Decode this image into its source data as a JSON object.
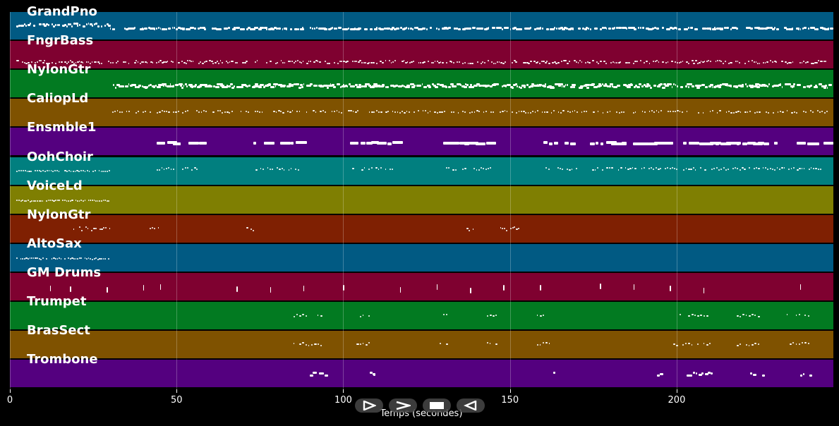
{
  "tracks": [
    {
      "name": "GrandPno",
      "color": "#015a83",
      "pattern": "dense"
    },
    {
      "name": "FngrBass",
      "color": "#7f0130",
      "pattern": "dense_thin"
    },
    {
      "name": "NylonGtr",
      "color": "#027a21",
      "pattern": "late_dense"
    },
    {
      "name": "CaliopLd",
      "color": "#7f5200",
      "pattern": "late_medium"
    },
    {
      "name": "Ensmble1",
      "color": "#54007f",
      "pattern": "blocks"
    },
    {
      "name": "OohChoir",
      "color": "#017f7f",
      "pattern": "choir"
    },
    {
      "name": "VoiceLd",
      "color": "#7f7f02",
      "pattern": "intro"
    },
    {
      "name": "NylonGtr",
      "color": "#7f2002",
      "pattern": "sparse"
    },
    {
      "name": "AltoSax",
      "color": "#015a83",
      "pattern": "intro"
    },
    {
      "name": "GM Drums",
      "color": "#7f0130",
      "pattern": "drums"
    },
    {
      "name": "Trumpet",
      "color": "#027a21",
      "pattern": "brass"
    },
    {
      "name": "BrasSect",
      "color": "#7f5200",
      "pattern": "brass"
    },
    {
      "name": "Trombone",
      "color": "#54007f",
      "pattern": "trombone"
    }
  ],
  "xaxis": {
    "label": "Temps (secondes)",
    "range": [
      0,
      247
    ],
    "ticks": [
      {
        "value": 0,
        "label": "0"
      },
      {
        "value": 50,
        "label": "50"
      },
      {
        "value": 100,
        "label": "100"
      },
      {
        "value": 150,
        "label": "150"
      },
      {
        "value": 200,
        "label": "200"
      }
    ]
  },
  "controls": [
    {
      "name": "play-icon",
      "label": "play"
    },
    {
      "name": "fast-forward-icon",
      "label": "forward"
    },
    {
      "name": "stop-icon",
      "label": "stop"
    },
    {
      "name": "rewind-icon",
      "label": "back"
    }
  ]
}
